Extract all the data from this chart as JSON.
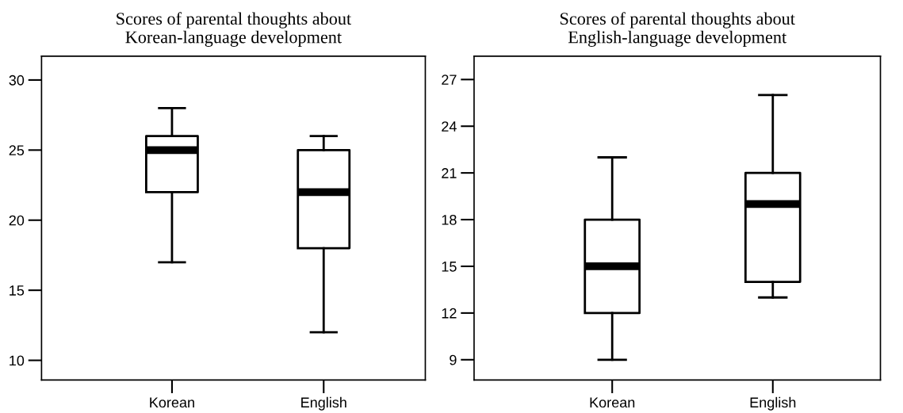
{
  "chart_data": [
    {
      "type": "box",
      "title": "Scores of parental thoughts about\nKorean-language development",
      "categories": [
        "Korean",
        "English"
      ],
      "ylim": [
        8.6,
        31.7
      ],
      "yticks": [
        10,
        15,
        20,
        25,
        30
      ],
      "grid": false,
      "color": "#000000",
      "boxes": [
        {
          "low": 17,
          "q1": 22,
          "median": 25,
          "q3": 26,
          "high": 28
        },
        {
          "low": 12,
          "q1": 18,
          "median": 22,
          "q3": 25,
          "high": 26
        }
      ]
    },
    {
      "type": "box",
      "title": "Scores of parental thoughts about\nEnglish-language development",
      "categories": [
        "Korean",
        "English"
      ],
      "ylim": [
        7.7,
        28.5
      ],
      "yticks": [
        9,
        12,
        15,
        18,
        21,
        24,
        27
      ],
      "grid": false,
      "color": "#000000",
      "boxes": [
        {
          "low": 9,
          "q1": 12,
          "median": 15,
          "q3": 18,
          "high": 22
        },
        {
          "low": 13,
          "q1": 14,
          "median": 19,
          "q3": 21,
          "high": 26
        }
      ]
    }
  ]
}
